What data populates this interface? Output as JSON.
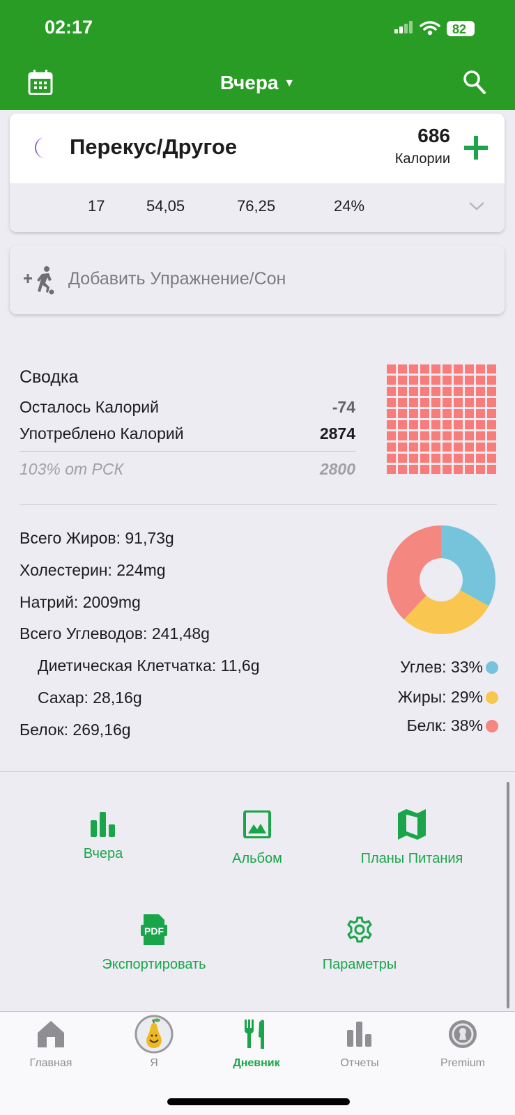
{
  "status": {
    "time": "02:17",
    "battery": "82"
  },
  "header": {
    "title": "Вчера",
    "calendar_icon": "calendar-icon",
    "search_icon": "search-icon"
  },
  "meal": {
    "name": "Перекус/Другое",
    "calories": "686",
    "calories_label": "Калории",
    "stats": [
      "17",
      "54,05",
      "76,25",
      "24%"
    ],
    "accent": "#8e5bc9"
  },
  "exercise": {
    "label": "Добавить Упражнение/Сон"
  },
  "summary": {
    "title": "Сводка",
    "remaining_label": "Осталось Калорий",
    "remaining": "-74",
    "consumed_label": "Употреблено Калорий",
    "consumed": "2874",
    "rdi_label": "103% от РСК",
    "rdi": "2800",
    "waffle_filled_percent": 100,
    "waffle_color": "#f97c7a"
  },
  "nutrients": [
    {
      "label": "Всего Жиров: 91,73g",
      "indent": false
    },
    {
      "label": "Холестерин: 224mg",
      "indent": false
    },
    {
      "label": "Натрий: 2009mg",
      "indent": false
    },
    {
      "label": "Всего Углеводов: 241,48g",
      "indent": false
    },
    {
      "label": "Диетическая Клетчатка: 11,6g",
      "indent": true
    },
    {
      "label": "Сахар: 28,16g",
      "indent": true
    },
    {
      "label": "Белок: 269,16g",
      "indent": false
    }
  ],
  "chart_data": {
    "type": "pie",
    "donut": true,
    "categories": [
      "Углев",
      "Жиры",
      "Белк"
    ],
    "values": [
      33,
      29,
      38
    ],
    "colors": [
      "#76c3dc",
      "#f9c74f",
      "#f4877f"
    ],
    "legend": [
      "Углев: 33%",
      "Жиры: 29%",
      "Белк: 38%"
    ],
    "legend_position": "bottom-right"
  },
  "actions": [
    {
      "label": "Вчера",
      "icon": "bar-chart-icon"
    },
    {
      "label": "Альбом",
      "icon": "image-icon"
    },
    {
      "label": "Планы Питания",
      "icon": "map-icon"
    },
    {
      "label": "Экспортировать",
      "icon": "pdf-icon"
    },
    {
      "label": "Параметры",
      "icon": "gear-icon"
    }
  ],
  "tabs": [
    {
      "label": "Главная",
      "icon": "home-icon",
      "active": false
    },
    {
      "label": "Я",
      "icon": "pear-avatar-icon",
      "active": false
    },
    {
      "label": "Дневник",
      "icon": "fork-knife-icon",
      "active": true
    },
    {
      "label": "Отчеты",
      "icon": "bar-chart-icon",
      "active": false
    },
    {
      "label": "Premium",
      "icon": "premium-badge-icon",
      "active": false
    }
  ],
  "colors": {
    "brand": "#289c24",
    "accent_green": "#1aa54a"
  }
}
